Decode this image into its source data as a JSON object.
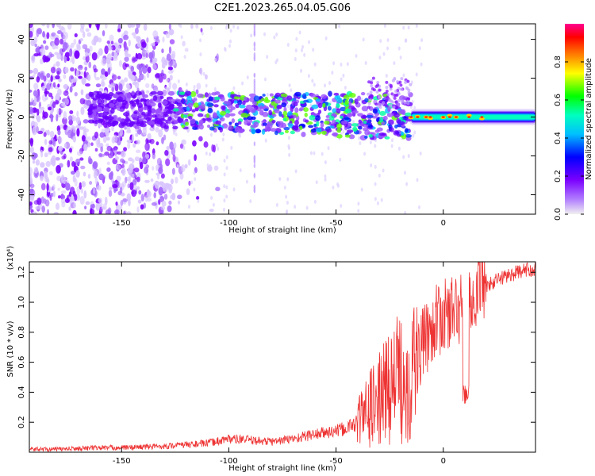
{
  "figure": {
    "title": "C2E1.2023.265.04.05.G06"
  },
  "chart_data": [
    {
      "type": "heatmap",
      "title": "C2E1.2023.265.04.05.G06",
      "xlabel": "Height of straight line (km)",
      "ylabel": "Frequency (Hz)",
      "xlim": [
        -193,
        43
      ],
      "ylim": [
        -50,
        48
      ],
      "xticks": [
        -150,
        -100,
        -50,
        0
      ],
      "yticks": [
        -40,
        -20,
        0,
        20,
        40
      ],
      "colorbar": {
        "label": "Normalized spectral amplitude",
        "range": [
          0.0,
          1.0
        ],
        "ticks": [
          0.0,
          0.2,
          0.4,
          0.6,
          0.8
        ],
        "colormap": [
          "#f0f0f0",
          "#7a00ff",
          "#0000ff",
          "#00ffff",
          "#00ff00",
          "#ffff00",
          "#ff0000",
          "#ff0090"
        ]
      },
      "features": {
        "scatter_noise_region_km": [
          -193,
          -125
        ],
        "band_center_hz": 0,
        "strong_band_region_km": [
          -15,
          43
        ]
      }
    },
    {
      "type": "line",
      "xlabel": "Height of straight line (km)",
      "ylabel": "SNR (10 * v/v)",
      "scale_note": "(x10⁴)",
      "xlim": [
        -193,
        43
      ],
      "ylim": [
        0.0,
        1.27
      ],
      "xticks": [
        -150,
        -100,
        -50,
        0
      ],
      "yticks": [
        0.2,
        0.4,
        0.6,
        0.8,
        1.0,
        1.2
      ],
      "line_color": "#ee3333",
      "series": [
        {
          "x": [
            -193,
            -180,
            -170,
            -160,
            -150,
            -140,
            -130,
            -120,
            -110,
            -100,
            -90,
            -80,
            -70,
            -60,
            -50,
            -45,
            -40,
            -35,
            -30,
            -25,
            -20,
            -15,
            -12,
            -10,
            -5,
            0,
            5,
            10,
            15,
            20,
            25,
            30,
            35,
            40,
            43
          ],
          "values": [
            0.02,
            0.02,
            0.025,
            0.03,
            0.03,
            0.035,
            0.04,
            0.05,
            0.06,
            0.09,
            0.08,
            0.07,
            0.09,
            0.12,
            0.14,
            0.16,
            0.2,
            0.28,
            0.35,
            0.45,
            0.5,
            0.5,
            0.65,
            0.7,
            0.85,
            0.9,
            0.95,
            0.95,
            1.05,
            1.1,
            1.15,
            1.18,
            1.2,
            1.22,
            1.22
          ]
        }
      ]
    }
  ]
}
